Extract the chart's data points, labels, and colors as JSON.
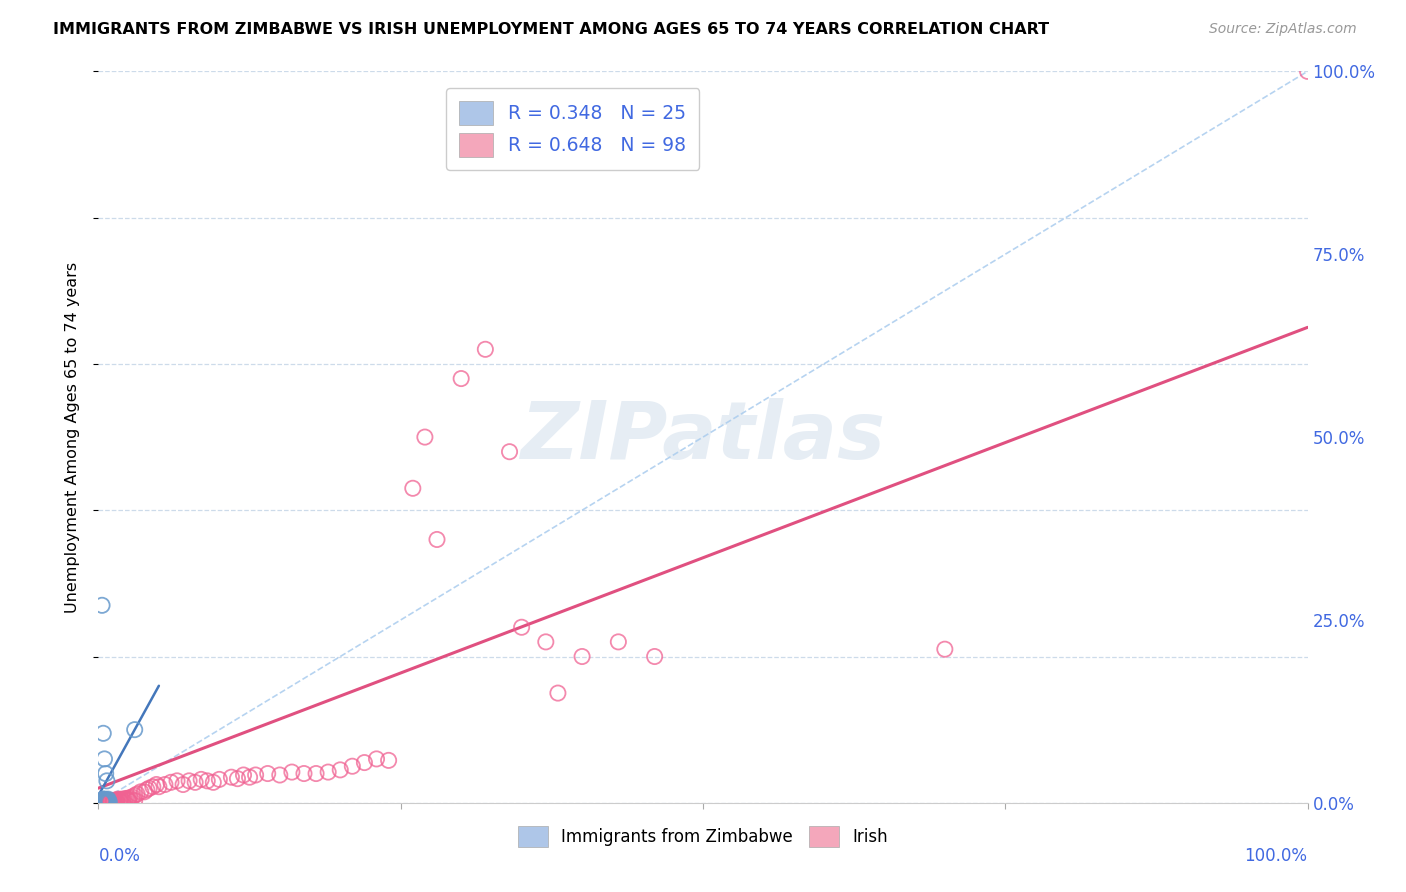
{
  "title": "IMMIGRANTS FROM ZIMBABWE VS IRISH UNEMPLOYMENT AMONG AGES 65 TO 74 YEARS CORRELATION CHART",
  "source": "Source: ZipAtlas.com",
  "ylabel": "Unemployment Among Ages 65 to 74 years",
  "legend_label1": "Immigrants from Zimbabwe",
  "legend_label2": "Irish",
  "r1": "0.348",
  "n1": "25",
  "r2": "0.648",
  "n2": "98",
  "color_blue_scatter": "#6699cc",
  "color_pink_scatter": "#f06292",
  "color_blue_line": "#4477bb",
  "color_pink_line": "#e05080",
  "color_dashed": "#aaccee",
  "color_blue_legend": "#aec6e8",
  "color_pink_legend": "#f4a7bb",
  "color_axis_text": "#4169e1",
  "watermark_color": "#c8d8e8",
  "ytick_labels": [
    "0.0%",
    "25.0%",
    "50.0%",
    "75.0%",
    "100.0%"
  ],
  "ytick_vals": [
    0.0,
    0.25,
    0.5,
    0.75,
    1.0
  ],
  "xtick_labels": [
    "0.0%",
    "100.0%"
  ],
  "xtick_vals": [
    0.0,
    1.0
  ],
  "xlim": [
    0.0,
    1.0
  ],
  "ylim": [
    0.0,
    1.0
  ],
  "pink_line_x": [
    0.0,
    1.0
  ],
  "pink_line_y": [
    0.02,
    0.65
  ],
  "blue_line_x": [
    0.0,
    0.05
  ],
  "blue_line_y": [
    0.01,
    0.16
  ],
  "blue_points_x": [
    0.003,
    0.004,
    0.004,
    0.005,
    0.005,
    0.005,
    0.005,
    0.006,
    0.006,
    0.006,
    0.006,
    0.007,
    0.007,
    0.008,
    0.008,
    0.008,
    0.009,
    0.003,
    0.004,
    0.005,
    0.006,
    0.007,
    0.03,
    0.003,
    0.004
  ],
  "blue_points_y": [
    0.003,
    0.005,
    0.003,
    0.005,
    0.003,
    0.002,
    0.002,
    0.004,
    0.003,
    0.002,
    0.001,
    0.004,
    0.003,
    0.005,
    0.003,
    0.002,
    0.001,
    0.27,
    0.095,
    0.06,
    0.04,
    0.03,
    0.1,
    0.001,
    0.001
  ],
  "pink_points_x": [
    0.003,
    0.004,
    0.005,
    0.005,
    0.006,
    0.006,
    0.006,
    0.007,
    0.007,
    0.008,
    0.008,
    0.009,
    0.009,
    0.01,
    0.01,
    0.011,
    0.012,
    0.012,
    0.013,
    0.013,
    0.014,
    0.015,
    0.015,
    0.016,
    0.017,
    0.018,
    0.019,
    0.02,
    0.021,
    0.022,
    0.023,
    0.024,
    0.025,
    0.026,
    0.028,
    0.03,
    0.032,
    0.035,
    0.038,
    0.04,
    0.042,
    0.045,
    0.048,
    0.05,
    0.055,
    0.06,
    0.065,
    0.07,
    0.075,
    0.08,
    0.085,
    0.09,
    0.095,
    0.1,
    0.11,
    0.115,
    0.12,
    0.125,
    0.13,
    0.14,
    0.15,
    0.16,
    0.17,
    0.18,
    0.19,
    0.2,
    0.21,
    0.22,
    0.23,
    0.24,
    0.26,
    0.27,
    0.28,
    0.3,
    0.32,
    0.34,
    0.38,
    0.4,
    0.43,
    0.46,
    0.003,
    0.004,
    0.005,
    0.006,
    0.007,
    0.008,
    0.009,
    0.01,
    0.012,
    0.015,
    0.018,
    0.02,
    0.025,
    0.03,
    0.7,
    1.0,
    0.35,
    0.37
  ],
  "pink_points_y": [
    0.003,
    0.003,
    0.002,
    0.002,
    0.003,
    0.002,
    0.001,
    0.003,
    0.002,
    0.003,
    0.002,
    0.003,
    0.001,
    0.003,
    0.002,
    0.002,
    0.003,
    0.001,
    0.003,
    0.002,
    0.003,
    0.004,
    0.002,
    0.005,
    0.004,
    0.003,
    0.005,
    0.004,
    0.005,
    0.005,
    0.006,
    0.005,
    0.006,
    0.007,
    0.008,
    0.01,
    0.012,
    0.015,
    0.015,
    0.018,
    0.02,
    0.022,
    0.025,
    0.022,
    0.025,
    0.028,
    0.03,
    0.025,
    0.03,
    0.028,
    0.032,
    0.03,
    0.028,
    0.032,
    0.035,
    0.033,
    0.038,
    0.035,
    0.038,
    0.04,
    0.038,
    0.042,
    0.04,
    0.04,
    0.042,
    0.045,
    0.05,
    0.055,
    0.06,
    0.058,
    0.43,
    0.5,
    0.36,
    0.58,
    0.62,
    0.48,
    0.15,
    0.2,
    0.22,
    0.2,
    0.001,
    0.001,
    0.001,
    0.001,
    0.001,
    0.001,
    0.001,
    0.001,
    0.001,
    0.002,
    0.002,
    0.002,
    0.003,
    0.003,
    0.21,
    1.0,
    0.24,
    0.22
  ]
}
